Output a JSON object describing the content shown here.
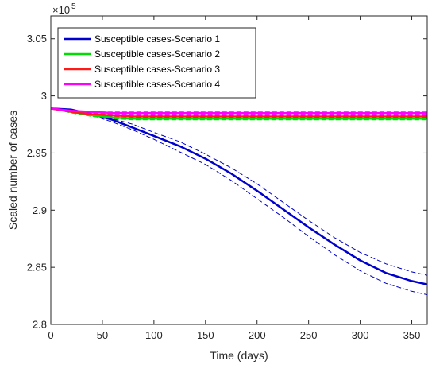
{
  "chart_data": {
    "type": "line",
    "xlabel": "Time (days)",
    "ylabel": "Scaled number of cases",
    "y_exponent_label": "×10",
    "y_exponent_power": "5",
    "xlim": [
      0,
      365
    ],
    "ylim": [
      2.8,
      3.07
    ],
    "xticks": [
      0,
      50,
      100,
      150,
      200,
      250,
      300,
      350
    ],
    "yticks": [
      2.8,
      2.85,
      2.9,
      2.95,
      3.0,
      3.05
    ],
    "ytick_labels": [
      "2.8",
      "2.85",
      "2.9",
      "2.95",
      "3",
      "3.05"
    ],
    "grid": false,
    "legend_position": "top-left",
    "series": [
      {
        "name": "Susceptible cases-Scenario 1",
        "color": "#0000cc",
        "x": [
          0,
          20,
          40,
          60,
          80,
          100,
          125,
          150,
          175,
          200,
          225,
          250,
          275,
          300,
          325,
          350,
          365
        ],
        "y": [
          2.989,
          2.988,
          2.984,
          2.979,
          2.972,
          2.965,
          2.956,
          2.945,
          2.932,
          2.917,
          2.901,
          2.885,
          2.87,
          2.856,
          2.845,
          2.838,
          2.835
        ],
        "band_upper": [
          2.989,
          2.988,
          2.985,
          2.98,
          2.975,
          2.968,
          2.96,
          2.949,
          2.937,
          2.923,
          2.907,
          2.891,
          2.876,
          2.863,
          2.853,
          2.846,
          2.843
        ],
        "band_lower": [
          2.989,
          2.987,
          2.983,
          2.977,
          2.97,
          2.962,
          2.951,
          2.94,
          2.926,
          2.91,
          2.894,
          2.877,
          2.861,
          2.847,
          2.836,
          2.829,
          2.826
        ]
      },
      {
        "name": "Susceptible cases-Scenario 2",
        "color": "#00dd00",
        "x": [
          0,
          20,
          40,
          60,
          80,
          100,
          150,
          200,
          250,
          300,
          350,
          365
        ],
        "y": [
          2.989,
          2.986,
          2.983,
          2.981,
          2.98,
          2.98,
          2.98,
          2.98,
          2.98,
          2.98,
          2.98,
          2.98
        ],
        "band_upper": [
          2.989,
          2.986,
          2.984,
          2.982,
          2.981,
          2.981,
          2.981,
          2.981,
          2.981,
          2.981,
          2.981,
          2.981
        ],
        "band_lower": [
          2.989,
          2.985,
          2.982,
          2.98,
          2.979,
          2.979,
          2.979,
          2.979,
          2.979,
          2.979,
          2.979,
          2.979
        ]
      },
      {
        "name": "Susceptible cases-Scenario 3",
        "color": "#ff1a1a",
        "x": [
          0,
          20,
          40,
          60,
          80,
          100,
          150,
          200,
          250,
          300,
          350,
          365
        ],
        "y": [
          2.989,
          2.986,
          2.984,
          2.983,
          2.982,
          2.982,
          2.982,
          2.982,
          2.982,
          2.982,
          2.982,
          2.982
        ],
        "band_upper": [
          2.989,
          2.987,
          2.985,
          2.984,
          2.983,
          2.983,
          2.983,
          2.983,
          2.983,
          2.983,
          2.983,
          2.983
        ],
        "band_lower": [
          2.989,
          2.986,
          2.983,
          2.982,
          2.981,
          2.981,
          2.981,
          2.981,
          2.981,
          2.981,
          2.981,
          2.981
        ]
      },
      {
        "name": "Susceptible cases-Scenario 4",
        "color": "#ff00ff",
        "x": [
          0,
          20,
          40,
          60,
          80,
          100,
          150,
          200,
          250,
          300,
          350,
          365
        ],
        "y": [
          2.989,
          2.987,
          2.986,
          2.985,
          2.985,
          2.985,
          2.985,
          2.985,
          2.985,
          2.985,
          2.985,
          2.985
        ],
        "band_upper": [
          2.989,
          2.987,
          2.986,
          2.986,
          2.986,
          2.986,
          2.986,
          2.986,
          2.986,
          2.986,
          2.986,
          2.986
        ],
        "band_lower": [
          2.989,
          2.986,
          2.985,
          2.984,
          2.984,
          2.984,
          2.984,
          2.984,
          2.984,
          2.984,
          2.984,
          2.984
        ]
      }
    ]
  }
}
